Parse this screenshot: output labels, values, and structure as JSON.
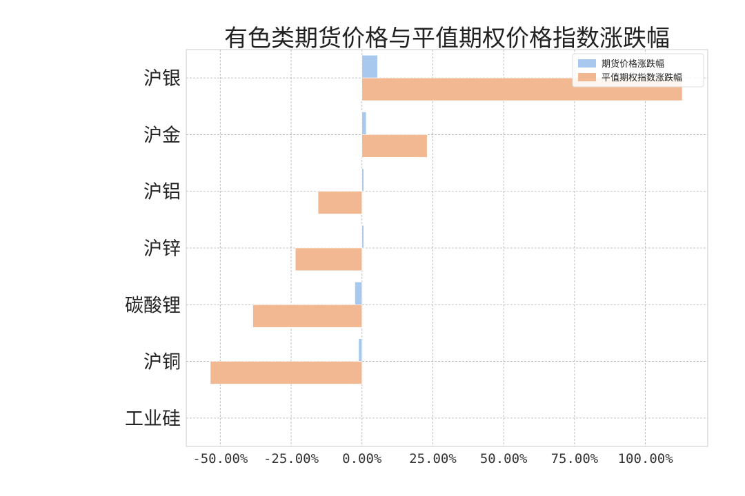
{
  "chart_data": {
    "type": "bar",
    "orientation": "horizontal",
    "title": "有色类期货价格与平值期权价格指数涨跌幅",
    "categories": [
      "沪银",
      "沪金",
      "沪铝",
      "沪锌",
      "碳酸锂",
      "沪铜",
      "工业硅"
    ],
    "series": [
      {
        "name": "期货价格涨跌幅",
        "color": "#a9c8ee",
        "values": [
          0.055,
          0.015,
          0.006,
          0.006,
          -0.025,
          -0.012,
          0.0
        ]
      },
      {
        "name": "平值期权指数涨跌幅",
        "color": "#f1b891",
        "values": [
          1.13,
          0.23,
          -0.155,
          -0.235,
          -0.385,
          -0.535,
          0.0
        ]
      }
    ],
    "xlim": [
      -0.62,
      1.22
    ],
    "xticks": [
      -0.5,
      -0.25,
      0.0,
      0.25,
      0.5,
      0.75,
      1.0
    ],
    "xtick_labels": [
      "-50.00%",
      "-25.00%",
      "0.00%",
      "25.00%",
      "50.00%",
      "75.00%",
      "100.00%"
    ],
    "grid": true,
    "legend_position": "top-right"
  }
}
